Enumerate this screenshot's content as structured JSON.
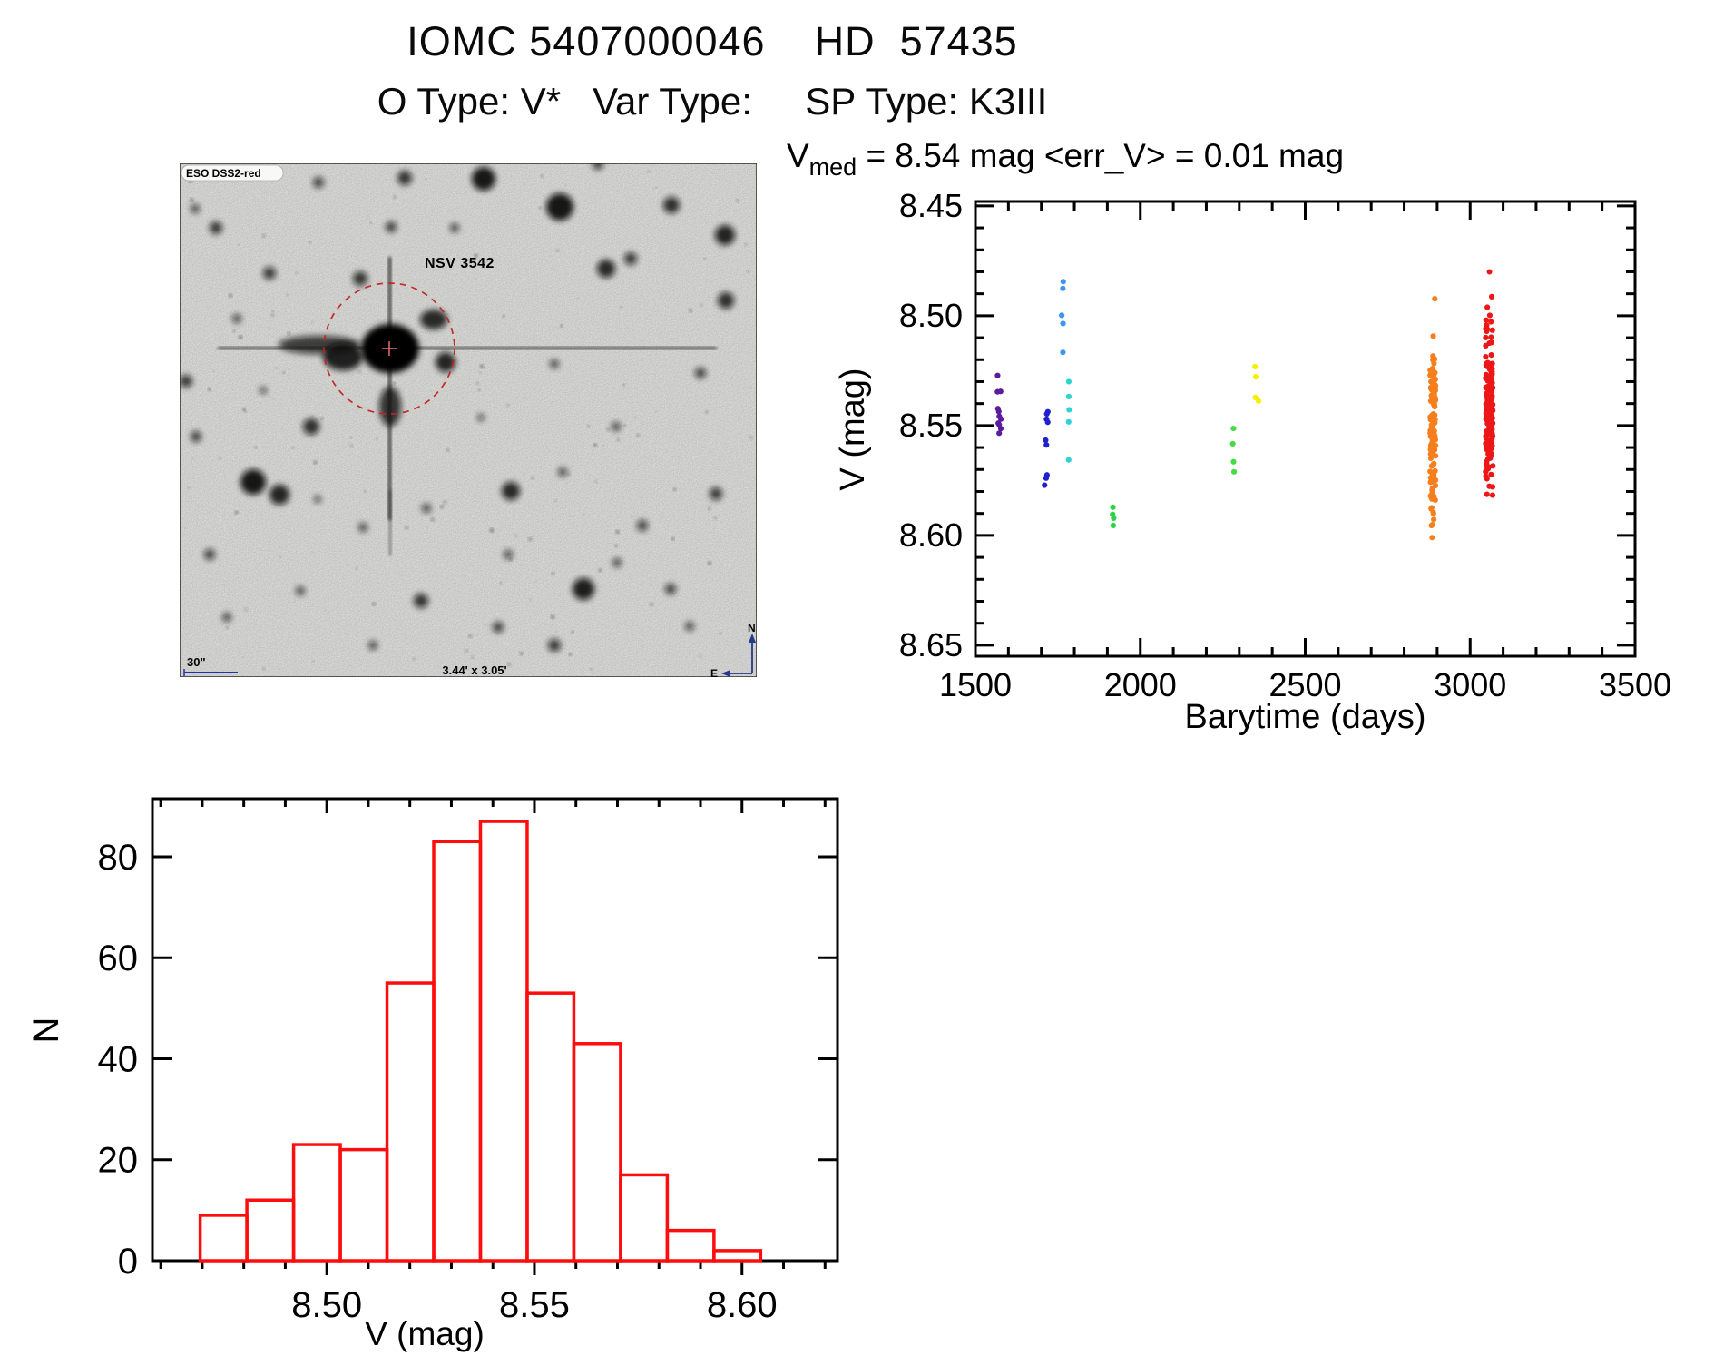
{
  "header": {
    "title": "IOMC 5407000046    HD  57435",
    "subtitle": "O Type: V*   Var Type:     SP Type: K3III"
  },
  "finder_chart": {
    "survey_label": "ESO DSS2-red",
    "target_label": "NSV 3542",
    "scale_label": "30\"",
    "fov_label": "3.44' x 3.05'",
    "compass_north": "N",
    "compass_east": "E",
    "target_color": "#c42222",
    "annotation_color": "#2233aa"
  },
  "chart_data": [
    {
      "id": "lightcurve",
      "type": "scatter",
      "title_parts": {
        "base": "V",
        "subscript": "med",
        "rest": " = 8.54 mag <err_V> = 0.01 mag"
      },
      "xlabel": "Barytime (days)",
      "ylabel": "V (mag)",
      "xlim": [
        1500,
        3500
      ],
      "ylim": [
        8.448,
        8.655
      ],
      "y_inverted_axis": "magnitude increases downward",
      "xticks": [
        1500,
        2000,
        2500,
        3000,
        3500
      ],
      "xtick_labels": [
        "1500",
        "2000",
        "2500",
        "3000",
        "3500"
      ],
      "yticks": [
        8.45,
        8.5,
        8.55,
        8.6,
        8.65
      ],
      "ytick_labels": [
        "8.45",
        "8.50",
        "8.55",
        "8.60",
        "8.65"
      ],
      "xtick_minor_step": 100,
      "ytick_minor_step": 0.01,
      "grid": "off",
      "legend": "none",
      "series": [
        {
          "name": "epoch-1",
          "color": "#5a1b9e",
          "t": 1572,
          "x_jitter": 2,
          "v": [
            8.527,
            8.534,
            8.535,
            8.542,
            8.544,
            8.546,
            8.547,
            8.549,
            8.55,
            8.551,
            8.553
          ]
        },
        {
          "name": "epoch-2",
          "color": "#2020cf",
          "t": 1715,
          "x_jitter": 2,
          "v": [
            8.544,
            8.545,
            8.547,
            8.548,
            8.557,
            8.559,
            8.572,
            8.574,
            8.577
          ]
        },
        {
          "name": "epoch-3",
          "color": "#3d97f2",
          "t": 1764,
          "x_jitter": 1,
          "v": [
            8.484,
            8.488,
            8.5,
            8.504,
            8.517
          ]
        },
        {
          "name": "epoch-4",
          "color": "#30d3d3",
          "t": 1783,
          "x_jitter": 1,
          "v": [
            8.53,
            8.537,
            8.543,
            8.548,
            8.566
          ]
        },
        {
          "name": "epoch-5",
          "color": "#2dd24a",
          "t": 1918,
          "x_jitter": 1,
          "v": [
            8.587,
            8.59,
            8.592,
            8.595
          ]
        },
        {
          "name": "epoch-6",
          "color": "#46da46",
          "t": 2282,
          "x_jitter": 1,
          "v": [
            8.551,
            8.558,
            8.566,
            8.571
          ]
        },
        {
          "name": "epoch-7",
          "color": "#f2f200",
          "t": 2353,
          "x_jitter": 2,
          "v": [
            8.523,
            8.528,
            8.537,
            8.539
          ]
        },
        {
          "name": "epoch-8",
          "color": "#f67e1c",
          "t": 2887,
          "x_jitter": 3,
          "stripe": {
            "n": 120,
            "center": 8.553,
            "sigma": 0.022,
            "min": 8.473,
            "max": 8.596
          },
          "v_extra": [
            8.601
          ]
        },
        {
          "name": "epoch-9",
          "color": "#ed1717",
          "t": 3058,
          "x_jitter": 4,
          "stripe": {
            "n": 170,
            "center": 8.543,
            "sigma": 0.019,
            "min": 8.49,
            "max": 8.584
          },
          "v_extra": [
            8.48
          ]
        }
      ]
    },
    {
      "id": "histogram",
      "type": "histogram",
      "xlabel": "V (mag)",
      "ylabel": "N",
      "bar_color": "#fd0d0d",
      "bin_start": 8.4695,
      "bin_width": 0.01125,
      "counts": [
        9,
        12,
        23,
        22,
        55,
        83,
        87,
        53,
        43,
        17,
        6,
        2
      ],
      "xlim": [
        8.458,
        8.623
      ],
      "ylim": [
        0,
        91.5
      ],
      "xticks": [
        8.5,
        8.55,
        8.6
      ],
      "xtick_labels": [
        "8.50",
        "8.55",
        "8.60"
      ],
      "yticks": [
        0,
        20,
        40,
        60,
        80
      ],
      "ytick_labels": [
        "0",
        "20",
        "40",
        "60",
        "80"
      ],
      "xtick_minor_step": 0.01,
      "grid": "off"
    }
  ]
}
